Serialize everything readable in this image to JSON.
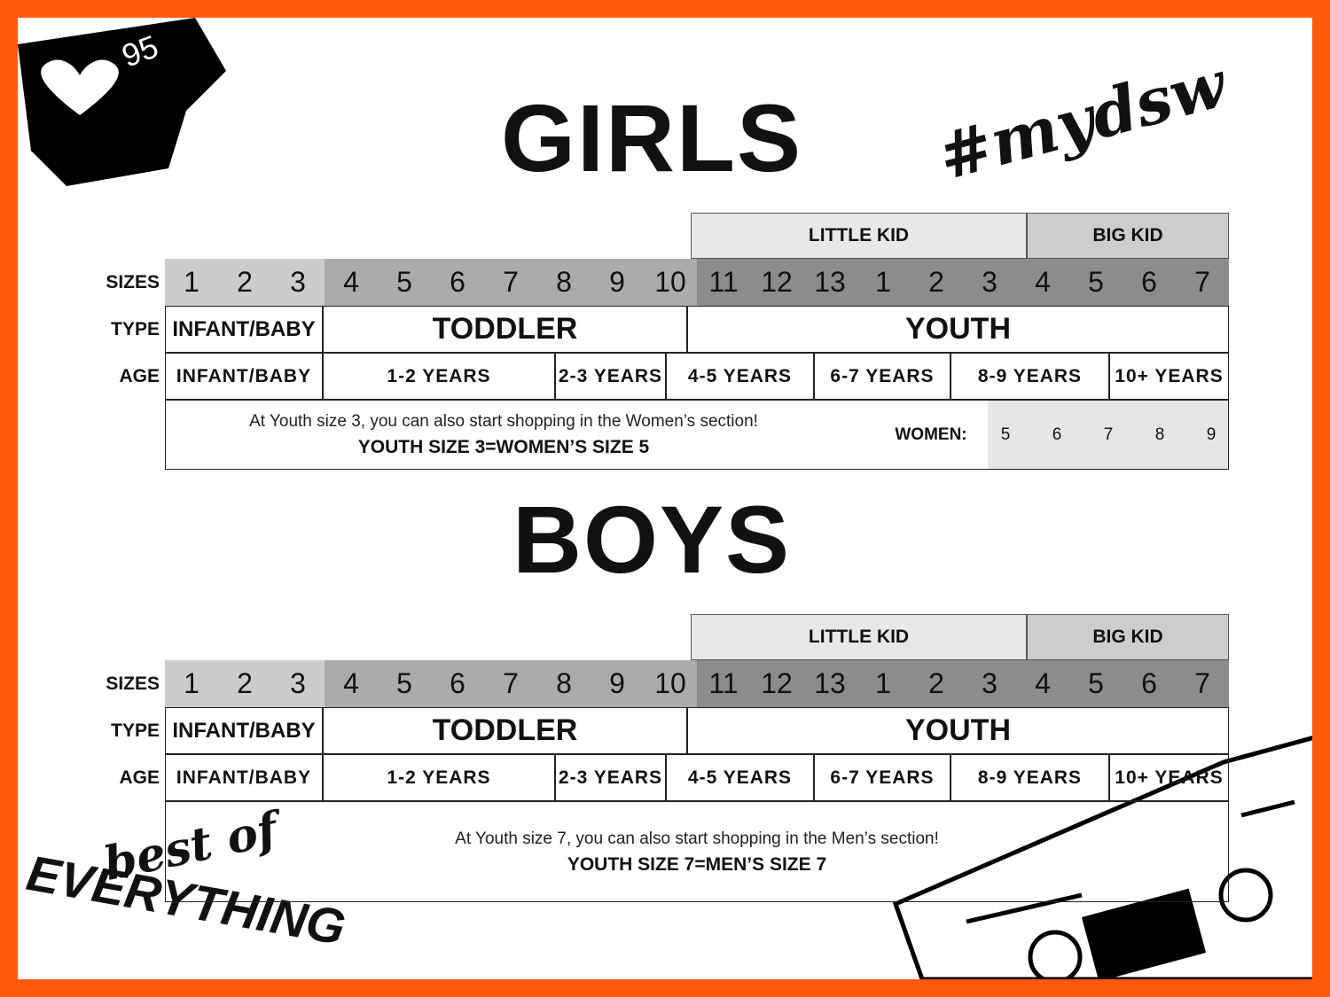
{
  "badge": {
    "count": "95"
  },
  "hashtag": "#mydsw",
  "sections": [
    {
      "title": "GIRLS",
      "groups": [
        "LITTLE KID",
        "BIG KID"
      ],
      "row_labels": [
        "SIZES",
        "TYPE",
        "AGE"
      ],
      "sizes": [
        "1",
        "2",
        "3",
        "4",
        "5",
        "6",
        "7",
        "8",
        "9",
        "10",
        "11",
        "12",
        "13",
        "1",
        "2",
        "3",
        "4",
        "5",
        "6",
        "7"
      ],
      "types": [
        "INFANT/BABY",
        "TODDLER",
        "YOUTH"
      ],
      "ages": [
        "INFANT/BABY",
        "1-2 YEARS",
        "2-3 YEARS",
        "4-5 YEARS",
        "6-7 YEARS",
        "8-9 YEARS",
        "10+ YEARS"
      ],
      "note": "At Youth size 3, you can also start shopping in the Women’s section!",
      "note_emphasis": "YOUTH SIZE 3=WOMEN’S SIZE 5",
      "women_label": "WOMEN:",
      "women_sizes": [
        "5",
        "6",
        "7",
        "8",
        "9"
      ]
    },
    {
      "title": "BOYS",
      "groups": [
        "LITTLE KID",
        "BIG KID"
      ],
      "row_labels": [
        "SIZES",
        "TYPE",
        "AGE"
      ],
      "sizes": [
        "1",
        "2",
        "3",
        "4",
        "5",
        "6",
        "7",
        "8",
        "9",
        "10",
        "11",
        "12",
        "13",
        "1",
        "2",
        "3",
        "4",
        "5",
        "6",
        "7"
      ],
      "types": [
        "INFANT/BABY",
        "TODDLER",
        "YOUTH"
      ],
      "ages": [
        "INFANT/BABY",
        "1-2 YEARS",
        "2-3 YEARS",
        "4-5 YEARS",
        "6-7 YEARS",
        "8-9 YEARS",
        "10+ YEARS"
      ],
      "note": "At Youth size 7, you can also start shopping in the Men’s section!",
      "note_emphasis": "YOUTH SIZE 7=MEN’S SIZE 7"
    }
  ],
  "logo": {
    "line1": "best of",
    "line2": "EVERYTHING"
  }
}
